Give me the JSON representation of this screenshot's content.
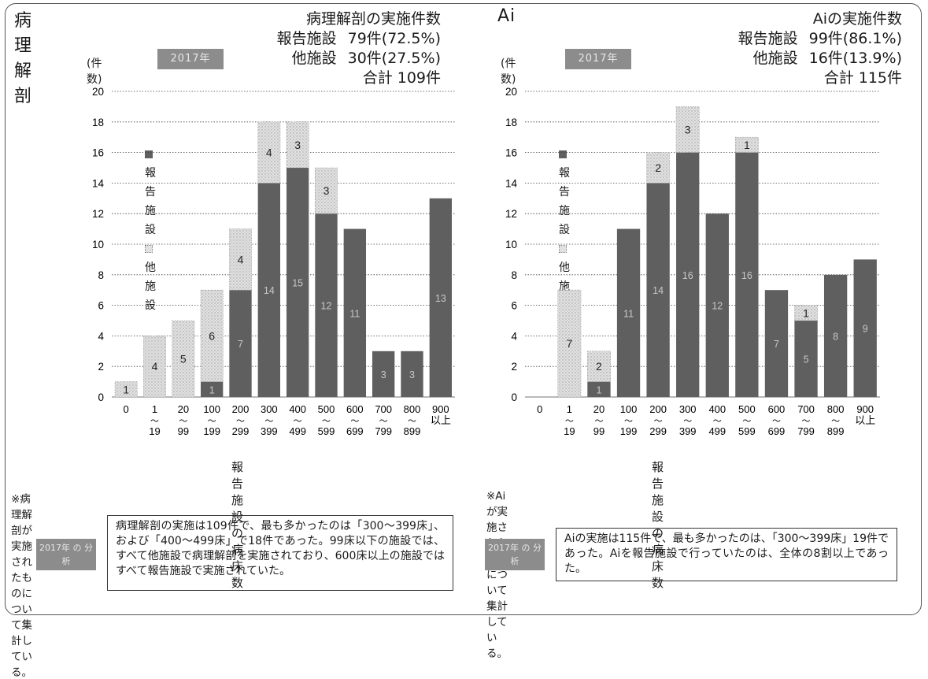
{
  "colors": {
    "reported": "#5f5f5f",
    "other": "#e1e1e1",
    "reported_text": "#c8c8c8",
    "badge": "#8c8c8c",
    "grid": "#444444"
  },
  "left": {
    "title": "病理解剖",
    "year_badge": "2017年",
    "unit": "(件数)",
    "summary": {
      "heading": "病理解剖の実施件数",
      "rows": [
        {
          "label": "報告施設",
          "value": "79件(72.5%)"
        },
        {
          "label": "他施設",
          "value": "30件(27.5%)"
        }
      ],
      "total": "合計 109件"
    },
    "x_axis_title": "報告施設の病床数",
    "note": "※病理解剖が実施されたものについて集計している。",
    "finding_badge": "2017年 の 分 析",
    "finding": "病理解剖の実施は109件で、最も多かったのは「300～399床」、および「400～499床」で18件であった。99床以下の施設では、すべて他施設で病理解剖を実施されており、600床以上の施設ではすべて報告施設で実施されていた。"
  },
  "right": {
    "title": "Ai",
    "year_badge": "2017年",
    "unit": "(件数)",
    "summary": {
      "heading": "Aiの実施件数",
      "rows": [
        {
          "label": "報告施設",
          "value": "99件(86.1%)"
        },
        {
          "label": "他施設",
          "value": "16件(13.9%)"
        }
      ],
      "total": "合計 115件"
    },
    "x_axis_title": "報告施設の病床数",
    "note": "※Aiが実施されたものについて集計している。",
    "finding_badge": "2017年 の 分 析",
    "finding": "Aiの実施は115件で、最も多かったのは、「300～399床」19件であった。Aiを報告施設で行っていたのは、全体の8割以上であった。"
  },
  "chart_data": [
    {
      "type": "bar",
      "stacked": true,
      "title": "病理解剖",
      "ylabel": "(件数)",
      "xlabel": "報告施設の病床数",
      "ylim": [
        0,
        20
      ],
      "yticks": [
        0,
        2,
        4,
        6,
        8,
        10,
        12,
        14,
        16,
        18,
        20
      ],
      "grid": true,
      "legend_position": "upper-left",
      "categories": [
        [
          "0"
        ],
        [
          "1",
          "～",
          "19"
        ],
        [
          "20",
          "～",
          "99"
        ],
        [
          "100",
          "～",
          "199"
        ],
        [
          "200",
          "～",
          "299"
        ],
        [
          "300",
          "～",
          "399"
        ],
        [
          "400",
          "～",
          "499"
        ],
        [
          "500",
          "～",
          "599"
        ],
        [
          "600",
          "～",
          "699"
        ],
        [
          "700",
          "～",
          "799"
        ],
        [
          "800",
          "～",
          "899"
        ],
        [
          "900",
          "以上"
        ]
      ],
      "series": [
        {
          "name": "報告施設",
          "values": [
            0,
            0,
            0,
            1,
            7,
            14,
            15,
            12,
            11,
            3,
            3,
            13
          ]
        },
        {
          "name": "他施設",
          "values": [
            1,
            4,
            5,
            6,
            4,
            4,
            3,
            3,
            0,
            0,
            0,
            0
          ]
        }
      ]
    },
    {
      "type": "bar",
      "stacked": true,
      "title": "Ai",
      "ylabel": "(件数)",
      "xlabel": "報告施設の病床数",
      "ylim": [
        0,
        20
      ],
      "yticks": [
        0,
        2,
        4,
        6,
        8,
        10,
        12,
        14,
        16,
        18,
        20
      ],
      "grid": true,
      "legend_position": "upper-left",
      "categories": [
        [
          "0"
        ],
        [
          "1",
          "～",
          "19"
        ],
        [
          "20",
          "～",
          "99"
        ],
        [
          "100",
          "～",
          "199"
        ],
        [
          "200",
          "～",
          "299"
        ],
        [
          "300",
          "～",
          "399"
        ],
        [
          "400",
          "～",
          "499"
        ],
        [
          "500",
          "～",
          "599"
        ],
        [
          "600",
          "～",
          "699"
        ],
        [
          "700",
          "～",
          "799"
        ],
        [
          "800",
          "～",
          "899"
        ],
        [
          "900",
          "以上"
        ]
      ],
      "series": [
        {
          "name": "報告施設",
          "values": [
            0,
            0,
            1,
            11,
            14,
            16,
            12,
            16,
            7,
            5,
            8,
            9
          ]
        },
        {
          "name": "他施設",
          "values": [
            0,
            7,
            2,
            0,
            2,
            3,
            0,
            1,
            0,
            1,
            0,
            0
          ]
        }
      ]
    }
  ]
}
